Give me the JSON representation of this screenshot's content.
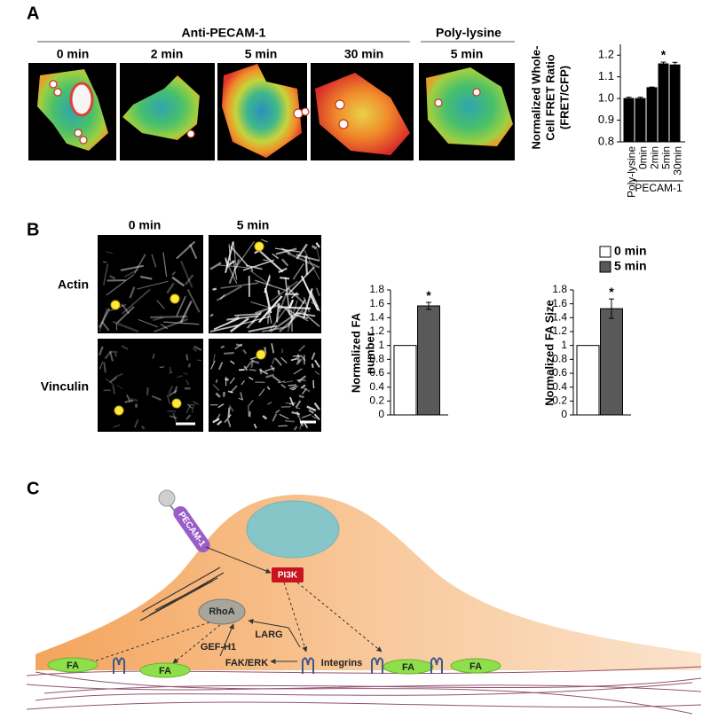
{
  "panel_labels": [
    "A",
    "B",
    "C"
  ],
  "panel_a": {
    "groups": [
      "Anti-PECAM-1",
      "Poly-lysine"
    ],
    "image_labels": [
      "0 min",
      "2 min",
      "5 min",
      "30 min",
      "5 min"
    ]
  },
  "panel_b": {
    "columns": [
      "0 min",
      "5 min"
    ],
    "rows": [
      "Actin",
      "Vinculin"
    ]
  },
  "panel_c": {
    "labels": {
      "pecam": "PECAM-1",
      "pi3k": "PI3K",
      "rhoa": "RhoA",
      "gef": "GEF-H1",
      "larg": "LARG",
      "fak": "FAK/ERK",
      "integrins": "Integrins"
    },
    "fa": [
      "FA",
      "FA",
      "FA",
      "FA"
    ]
  },
  "chart_data": [
    {
      "type": "bar",
      "ylabel": [
        "Normalized Whole-",
        "Cell FRET Ratio",
        "(FRET/CFP)"
      ],
      "categories": [
        "Poly-lysine",
        "0min",
        "2min",
        "5min",
        "30min"
      ],
      "category_group": "PECAM-1",
      "values": [
        1.0,
        1.0,
        1.05,
        1.16,
        1.155
      ],
      "errors": [
        0.006,
        0.006,
        0.003,
        0.008,
        0.012
      ],
      "color": "#000000",
      "ylim": [
        0.8,
        1.25
      ],
      "yticks": [
        0.8,
        0.9,
        {
          "value": 1,
          "label": "1.0"
        },
        1.1,
        1.2
      ],
      "annotation": "*"
    },
    {
      "type": "bar",
      "ylabel": [
        "Normalized FA",
        "number"
      ],
      "categories": [
        null
      ],
      "series": [
        {
          "color": "#ffffff",
          "values": [
            1
          ]
        },
        {
          "color": "#595959",
          "values": [
            1.57
          ],
          "errors": [
            0.05
          ]
        }
      ],
      "ylim": [
        0,
        1.8
      ],
      "yticks": [
        0,
        0.2,
        0.4,
        0.6,
        0.8,
        1,
        1.2,
        1.4,
        1.6,
        1.8
      ],
      "annotation": "*"
    },
    {
      "type": "bar",
      "ylabel": [
        "Normalized FA Size"
      ],
      "categories": [
        null
      ],
      "series": [
        {
          "name": "0 min",
          "color": "#ffffff",
          "values": [
            1
          ]
        },
        {
          "name": "5 min",
          "color": "#595959",
          "values": [
            1.53
          ],
          "errors": [
            0.14
          ]
        }
      ],
      "ylim": [
        0,
        1.8
      ],
      "yticks": [
        0,
        0.2,
        0.4,
        0.6,
        0.8,
        1,
        1.2,
        1.4,
        1.6,
        1.8
      ],
      "annotation": "*",
      "legend": "top"
    }
  ]
}
